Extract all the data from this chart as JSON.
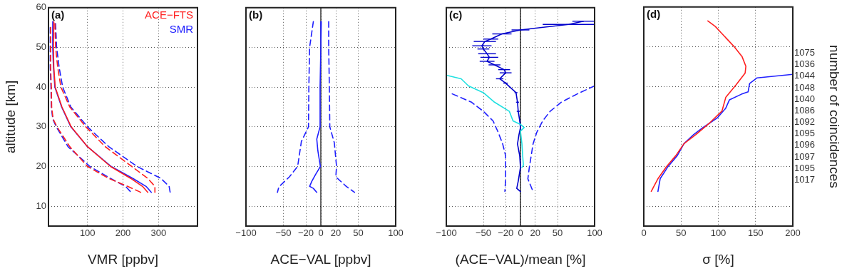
{
  "chart_data": [
    {
      "type": "line",
      "xlabel": "VMR [ppbv]",
      "ylabel": "altitude [km]",
      "annotations": [
        "(a)"
      ],
      "xlim": [
        -10,
        410
      ],
      "xticks": [
        100,
        200,
        300
      ],
      "ylim": [
        5,
        60
      ],
      "yticks": [
        10,
        20,
        30,
        40,
        50,
        60
      ],
      "grid": true,
      "legend": "top right",
      "marker": "none",
      "series": [
        {
          "name": "ACE−FTS",
          "color": "#ff2020",
          "x": [
            5,
            4,
            5,
            9,
            28,
            54,
            100,
            165,
            222,
            255,
            270
          ],
          "values": [
            56.5,
            50,
            45,
            40,
            35,
            30,
            25,
            20,
            17,
            15,
            13.5
          ]
        },
        {
          "name": "SMR",
          "color": "#2020ff",
          "x": [
            2,
            2,
            4,
            8,
            27,
            53,
            100,
            167,
            228,
            265,
            280
          ],
          "values": [
            56.5,
            50,
            45,
            40,
            35,
            30,
            25,
            20,
            17,
            15,
            13.5
          ]
        },
        {
          "color": "#ff2020",
          "line_style": "dashed",
          "x": [
            8,
            10,
            16,
            25,
            50,
            95,
            150,
            195,
            225,
            270,
            290,
            290
          ],
          "values": [
            56,
            50,
            45,
            40,
            35,
            30,
            25,
            22,
            20,
            17,
            15,
            13.5
          ]
        },
        {
          "color": "#2020ff",
          "line_style": "dashed",
          "x": [
            10,
            13,
            20,
            30,
            53,
            100,
            160,
            240,
            307,
            330,
            333
          ],
          "values": [
            56,
            50,
            45,
            40,
            35,
            30,
            25,
            20,
            17,
            15,
            13.5
          ]
        },
        {
          "color": "#ff2020",
          "line_style": "dashed",
          "x": [
            -4,
            -4,
            -4,
            -2,
            -1,
            3,
            14,
            50,
            100,
            160,
            213,
            250
          ],
          "values": [
            55,
            50,
            45,
            40,
            35,
            32,
            30,
            25,
            20,
            17,
            15,
            13.5
          ]
        },
        {
          "color": "#2020ff",
          "line_style": "dashed",
          "x": [
            -5,
            -5,
            -5,
            -3,
            -2,
            2,
            12,
            45,
            107,
            165,
            207,
            223
          ],
          "values": [
            55,
            50,
            45,
            40,
            35,
            32,
            30,
            25,
            20,
            17,
            15,
            13.5
          ]
        }
      ]
    },
    {
      "type": "line",
      "xlabel": "ACE−VAL [ppbv]",
      "annotations": [
        "(b)"
      ],
      "xlim": [
        -100,
        100
      ],
      "xticks": [
        -100,
        -50,
        -20,
        0,
        20,
        50,
        100
      ],
      "ylim": [
        5,
        60
      ],
      "yticks": [
        10,
        20,
        30,
        40,
        50,
        60
      ],
      "tick_labels": "x",
      "grid": true,
      "marker": "none",
      "ref_lines": [
        {
          "axis": "x",
          "value": 0,
          "color": "#000000"
        }
      ],
      "series": [
        {
          "color": "#2020ff",
          "x": [
            0.6,
            0,
            -1,
            -1,
            -5.4,
            -4,
            -0.6,
            -7,
            -12,
            -15,
            -10,
            -5.4
          ],
          "values": [
            56.5,
            50,
            40,
            30,
            26.9,
            24,
            20,
            18,
            16.3,
            15,
            14.5,
            13.5
          ]
        },
        {
          "color": "#2020ff",
          "line_style": "dashed",
          "x": [
            -10,
            -15,
            -16,
            -16.5,
            -26,
            -27,
            -31,
            -42,
            -56,
            -58
          ],
          "values": [
            56.5,
            50,
            40,
            30,
            26.3,
            25,
            20,
            17.4,
            14.9,
            13.5
          ]
        },
        {
          "color": "#2020ff",
          "line_style": "dashed",
          "x": [
            10.5,
            10.5,
            11.4,
            12,
            18,
            21,
            20,
            34,
            45
          ],
          "values": [
            56.5,
            50,
            40,
            30,
            26,
            20,
            17.4,
            15,
            13.5
          ]
        }
      ]
    },
    {
      "type": "line",
      "xlabel": "(ACE−VAL)/mean [%]",
      "annotations": [
        "(c)"
      ],
      "xlim": [
        -100,
        100
      ],
      "xticks": [
        -100,
        -50,
        -20,
        0,
        20,
        50,
        100
      ],
      "ylim": [
        5,
        60
      ],
      "yticks": [
        10,
        20,
        30,
        40,
        50,
        60
      ],
      "tick_labels": "x",
      "grid": true,
      "marker": "none",
      "ref_lines": [
        {
          "axis": "x",
          "value": 0,
          "color": "#000000"
        }
      ],
      "series": [
        {
          "color": "#20e0e0",
          "x": [
            -100,
            -80,
            -70,
            -50,
            -35,
            -15,
            -10,
            0,
            5,
            0,
            2,
            3,
            4,
            2
          ],
          "values": [
            43,
            42.1,
            40.3,
            38.6,
            36.2,
            33.9,
            31.5,
            30.6,
            29.8,
            28.9,
            25.7,
            22.7,
            20.3,
            19.8
          ]
        },
        {
          "color": "#2020ff",
          "line_style": "dashed",
          "x": [
            -92,
            -66,
            -50,
            -37,
            -30,
            -24,
            -20,
            -20,
            -20,
            -21
          ],
          "values": [
            38.3,
            36.2,
            33.9,
            31.5,
            28.6,
            25.7,
            22.7,
            19.8,
            16.9,
            13.7
          ]
        },
        {
          "color": "#2020ff",
          "line_style": "dashed",
          "x": [
            100,
            80,
            55,
            40,
            30,
            22,
            17,
            12,
            10,
            17
          ],
          "values": [
            40.3,
            38.6,
            36.2,
            33.9,
            31.5,
            28.6,
            25.7,
            19.8,
            16.9,
            13.7
          ]
        },
        {
          "color": "#0000cc",
          "x": [
            85,
            65,
            0,
            -25,
            -40,
            -48,
            -52,
            -50,
            -45,
            -42,
            -45,
            -35,
            -22,
            -20,
            -28,
            -20,
            -6,
            -4,
            -3,
            -1,
            0,
            -2,
            -4,
            -1,
            0,
            -3,
            -5,
            0
          ],
          "values": [
            56.6,
            55.8,
            54.4,
            53.4,
            52.1,
            51.5,
            50.4,
            49.6,
            48.4,
            47.5,
            46.5,
            45.6,
            44.4,
            43.6,
            42.1,
            41,
            38.6,
            36.2,
            33.9,
            31.5,
            29.8,
            28,
            25.7,
            22.7,
            19.8,
            16.3,
            14.5,
            13.7
          ],
          "xerrors": [
            15,
            35,
            12,
            13,
            10,
            15,
            13,
            8,
            12,
            12,
            10,
            8,
            8,
            8,
            5,
            3,
            2,
            2,
            2,
            1,
            1,
            null,
            null,
            null,
            null,
            null,
            null,
            null
          ]
        }
      ]
    },
    {
      "type": "line",
      "xlabel": "σ [%]",
      "y2label": "number of coincidences",
      "annotations": [
        "(d)"
      ],
      "xlim": [
        0,
        200
      ],
      "xticks": [
        0,
        50,
        100,
        150,
        200
      ],
      "ylim": [
        5,
        60
      ],
      "yticks": [
        10,
        20,
        30,
        40,
        50,
        60
      ],
      "tick_labels": "x",
      "grid": true,
      "marker": "none",
      "y2_categories": [
        null,
        null,
        null,
        null,
        "1075",
        "1036",
        "1044",
        "1048",
        "1040",
        "1086",
        "1092",
        "1095",
        "1096",
        "1097",
        "1095",
        "1017",
        null,
        null,
        null,
        null
      ],
      "series": [
        {
          "color": "#ff2020",
          "x": [
            86,
            96,
            105,
            121,
            132,
            137,
            136,
            124,
            110,
            105,
            89,
            70,
            54,
            43,
            30,
            19,
            10
          ],
          "values": [
            56.5,
            55.1,
            53.3,
            50.1,
            47.5,
            45.1,
            43.4,
            40.5,
            37.3,
            33.9,
            31,
            28,
            25.7,
            22.7,
            19.8,
            16.9,
            13.7
          ]
        },
        {
          "color": "#2020ff",
          "x": [
            200,
            152,
            142,
            140,
            131,
            115,
            110,
            99,
            80,
            67,
            54,
            45,
            32,
            22,
            19
          ],
          "values": [
            43.1,
            42.2,
            40.8,
            38.7,
            38.1,
            36.7,
            34.6,
            32.2,
            29.8,
            28,
            25.7,
            22.7,
            19.8,
            16.9,
            13.7
          ]
        }
      ]
    }
  ]
}
